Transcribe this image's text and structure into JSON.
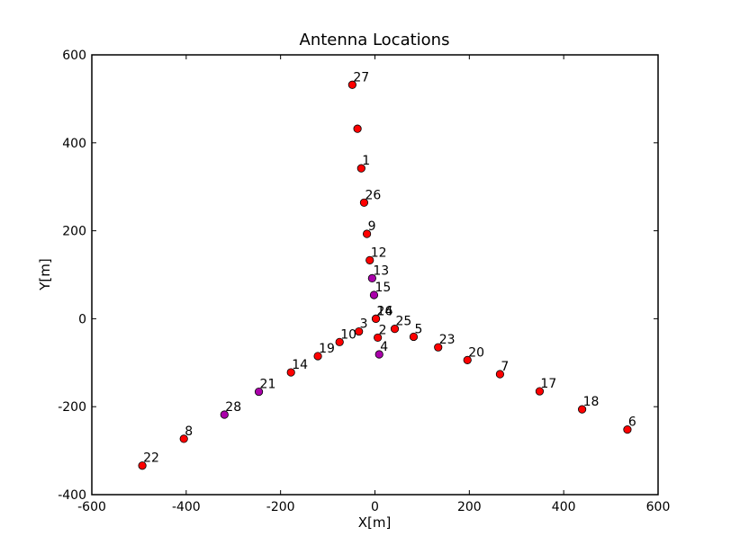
{
  "chart_data": {
    "type": "scatter",
    "title": "Antenna Locations",
    "xlabel": "X[m]",
    "ylabel": "Y[m]",
    "xlim": [
      -600,
      600
    ],
    "ylim": [
      -400,
      600
    ],
    "xticks": [
      -600,
      -400,
      -200,
      0,
      200,
      400,
      600
    ],
    "yticks": [
      -400,
      -200,
      0,
      200,
      400,
      600
    ],
    "grid": false,
    "legend": "none",
    "colors": {
      "red": "#ff0000",
      "purple": "#aa00aa"
    },
    "points": [
      {
        "label": "27",
        "x": -48,
        "y": 532,
        "color": "red"
      },
      {
        "label": "",
        "x": -37,
        "y": 432,
        "color": "red"
      },
      {
        "label": "1",
        "x": -29,
        "y": 342,
        "color": "red"
      },
      {
        "label": "26",
        "x": -23,
        "y": 264,
        "color": "red"
      },
      {
        "label": "9",
        "x": -17,
        "y": 193,
        "color": "red"
      },
      {
        "label": "12",
        "x": -11,
        "y": 133,
        "color": "red"
      },
      {
        "label": "13",
        "x": -6,
        "y": 92,
        "color": "purple"
      },
      {
        "label": "15",
        "x": -2,
        "y": 54,
        "color": "purple"
      },
      {
        "label": "24",
        "x": 2,
        "y": 0,
        "color": "red"
      },
      {
        "label": "16",
        "x": 2,
        "y": 0,
        "color": "red"
      },
      {
        "label": "25",
        "x": 42,
        "y": -23,
        "color": "red"
      },
      {
        "label": "5",
        "x": 82,
        "y": -41,
        "color": "red"
      },
      {
        "label": "23",
        "x": 134,
        "y": -65,
        "color": "red"
      },
      {
        "label": "20",
        "x": 196,
        "y": -94,
        "color": "red"
      },
      {
        "label": "7",
        "x": 265,
        "y": -126,
        "color": "red"
      },
      {
        "label": "17",
        "x": 349,
        "y": -165,
        "color": "red"
      },
      {
        "label": "18",
        "x": 439,
        "y": -206,
        "color": "red"
      },
      {
        "label": "6",
        "x": 535,
        "y": -252,
        "color": "red"
      },
      {
        "label": "2",
        "x": 6,
        "y": -43,
        "color": "red"
      },
      {
        "label": "4",
        "x": 9,
        "y": -81,
        "color": "purple"
      },
      {
        "label": "3",
        "x": -34,
        "y": -29,
        "color": "red"
      },
      {
        "label": "10",
        "x": -75,
        "y": -53,
        "color": "red"
      },
      {
        "label": "19",
        "x": -121,
        "y": -85,
        "color": "red"
      },
      {
        "label": "14",
        "x": -178,
        "y": -122,
        "color": "red"
      },
      {
        "label": "21",
        "x": -246,
        "y": -166,
        "color": "purple"
      },
      {
        "label": "28",
        "x": -319,
        "y": -218,
        "color": "purple"
      },
      {
        "label": "8",
        "x": -405,
        "y": -273,
        "color": "red"
      },
      {
        "label": "22",
        "x": -493,
        "y": -334,
        "color": "red"
      }
    ]
  }
}
